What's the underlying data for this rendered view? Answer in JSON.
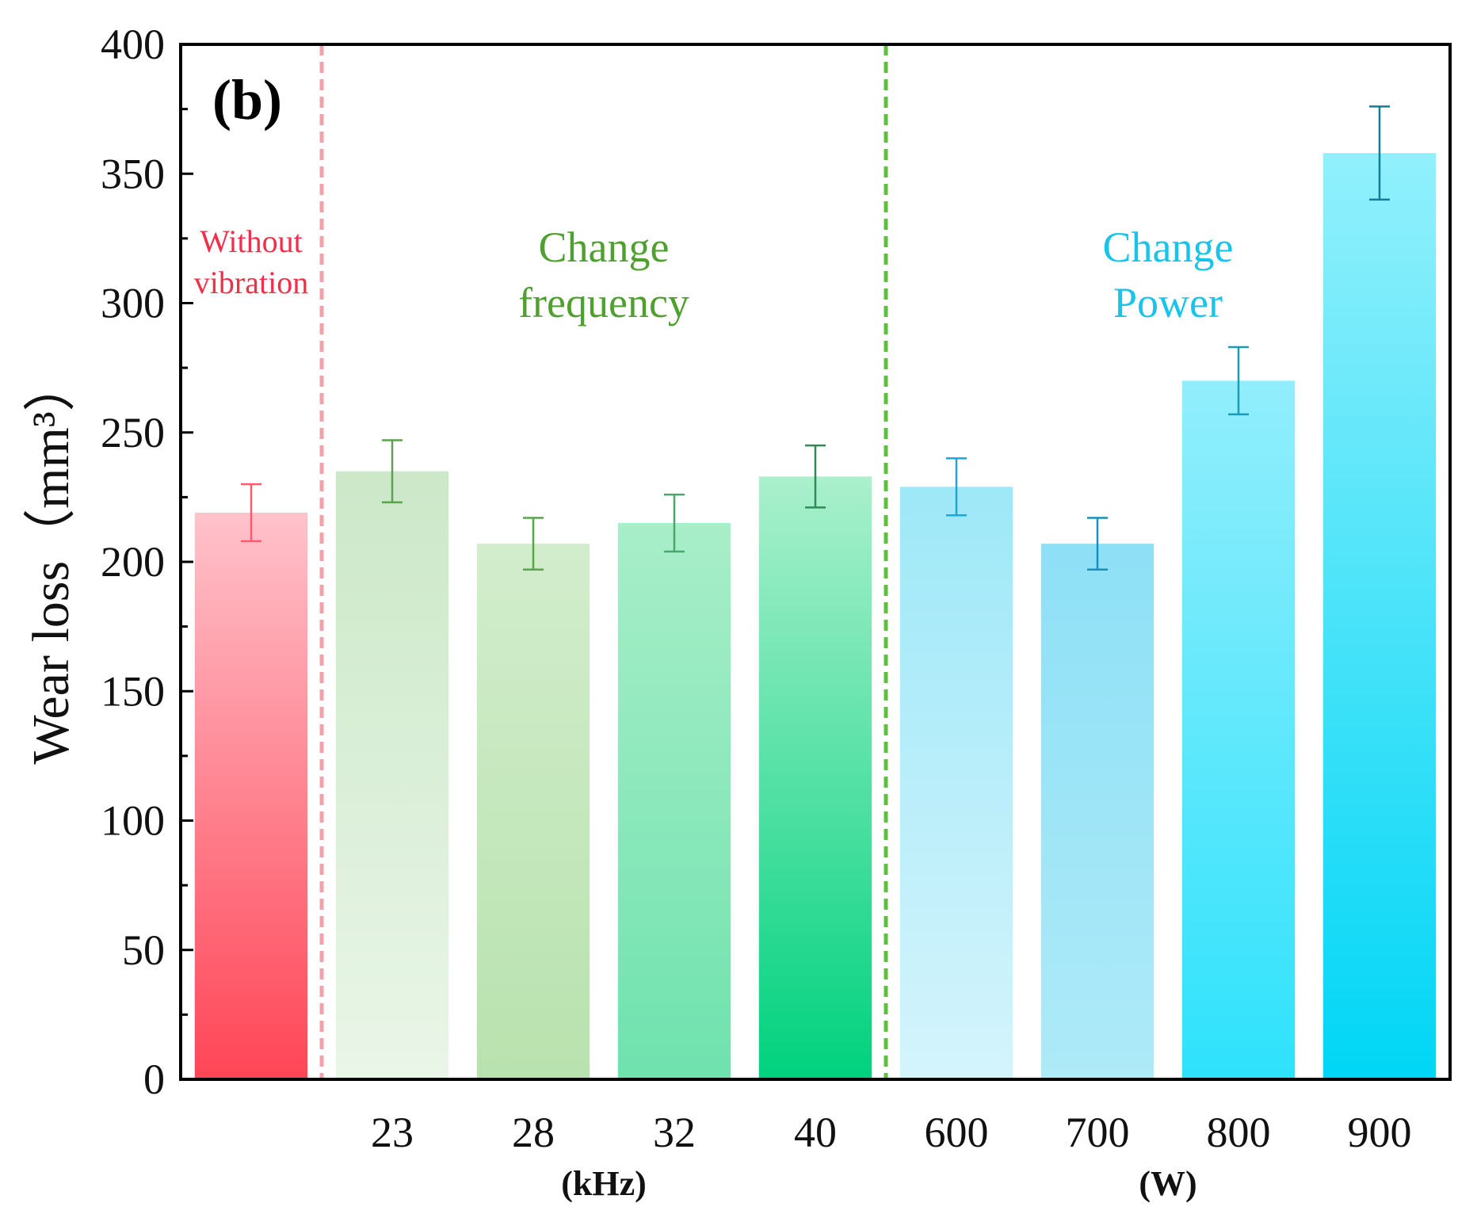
{
  "chart_data": {
    "type": "bar",
    "panel_label": "(b)",
    "ylabel": "Wear loss",
    "ylabel_unit": "（mm³）",
    "ylim": [
      0,
      400
    ],
    "yticks": [
      0,
      50,
      100,
      150,
      200,
      250,
      300,
      350,
      400
    ],
    "grid": false,
    "groups": [
      {
        "name": "Without vibration",
        "label_lines": [
          "Without",
          "vibration"
        ],
        "label_color": "#f0304a",
        "unit": "",
        "bars": [
          {
            "category": "",
            "value": 219,
            "error": 11,
            "color_top": "#ffc2cb",
            "color_bottom": "#ff4556",
            "err_color": "#ff5a6e"
          }
        ]
      },
      {
        "name": "Change frequency",
        "label_lines": [
          "Change",
          "frequency"
        ],
        "label_color": "#4fa02e",
        "unit": "(kHz)",
        "bars": [
          {
            "category": "23",
            "value": 235,
            "error": 12,
            "color_top": "#cbe8c8",
            "color_bottom": "#eaf6e8",
            "err_color": "#5aa54c"
          },
          {
            "category": "28",
            "value": 207,
            "error": 10,
            "color_top": "#d2edcc",
            "color_bottom": "#b8e2ae",
            "err_color": "#5aa54c"
          },
          {
            "category": "32",
            "value": 215,
            "error": 11,
            "color_top": "#a8eec8",
            "color_bottom": "#6fe2ae",
            "err_color": "#4aa66a"
          },
          {
            "category": "40",
            "value": 233,
            "error": 12,
            "color_top": "#aaf0cc",
            "color_bottom": "#00d27e",
            "err_color": "#2f8a55"
          }
        ]
      },
      {
        "name": "Change Power",
        "label_lines": [
          "Change",
          "Power"
        ],
        "label_color": "#19c4ea",
        "unit": "(W)",
        "bars": [
          {
            "category": "600",
            "value": 229,
            "error": 11,
            "color_top": "#9ee8f8",
            "color_bottom": "#d4f4fc",
            "err_color": "#1aa8d8"
          },
          {
            "category": "700",
            "value": 207,
            "error": 10,
            "color_top": "#8ee0f6",
            "color_bottom": "#aeeaf8",
            "err_color": "#1a90c0"
          },
          {
            "category": "800",
            "value": 270,
            "error": 13,
            "color_top": "#92eefc",
            "color_bottom": "#2ee2fc",
            "err_color": "#1a9ab8"
          },
          {
            "category": "900",
            "value": 358,
            "error": 18,
            "color_top": "#92f0fc",
            "color_bottom": "#00d6f6",
            "err_color": "#137d99"
          }
        ]
      }
    ],
    "dividers": [
      {
        "after_group": "Without vibration",
        "color": "#f4a0a8"
      },
      {
        "after_group": "Change frequency",
        "color": "#5cc23c"
      }
    ]
  }
}
